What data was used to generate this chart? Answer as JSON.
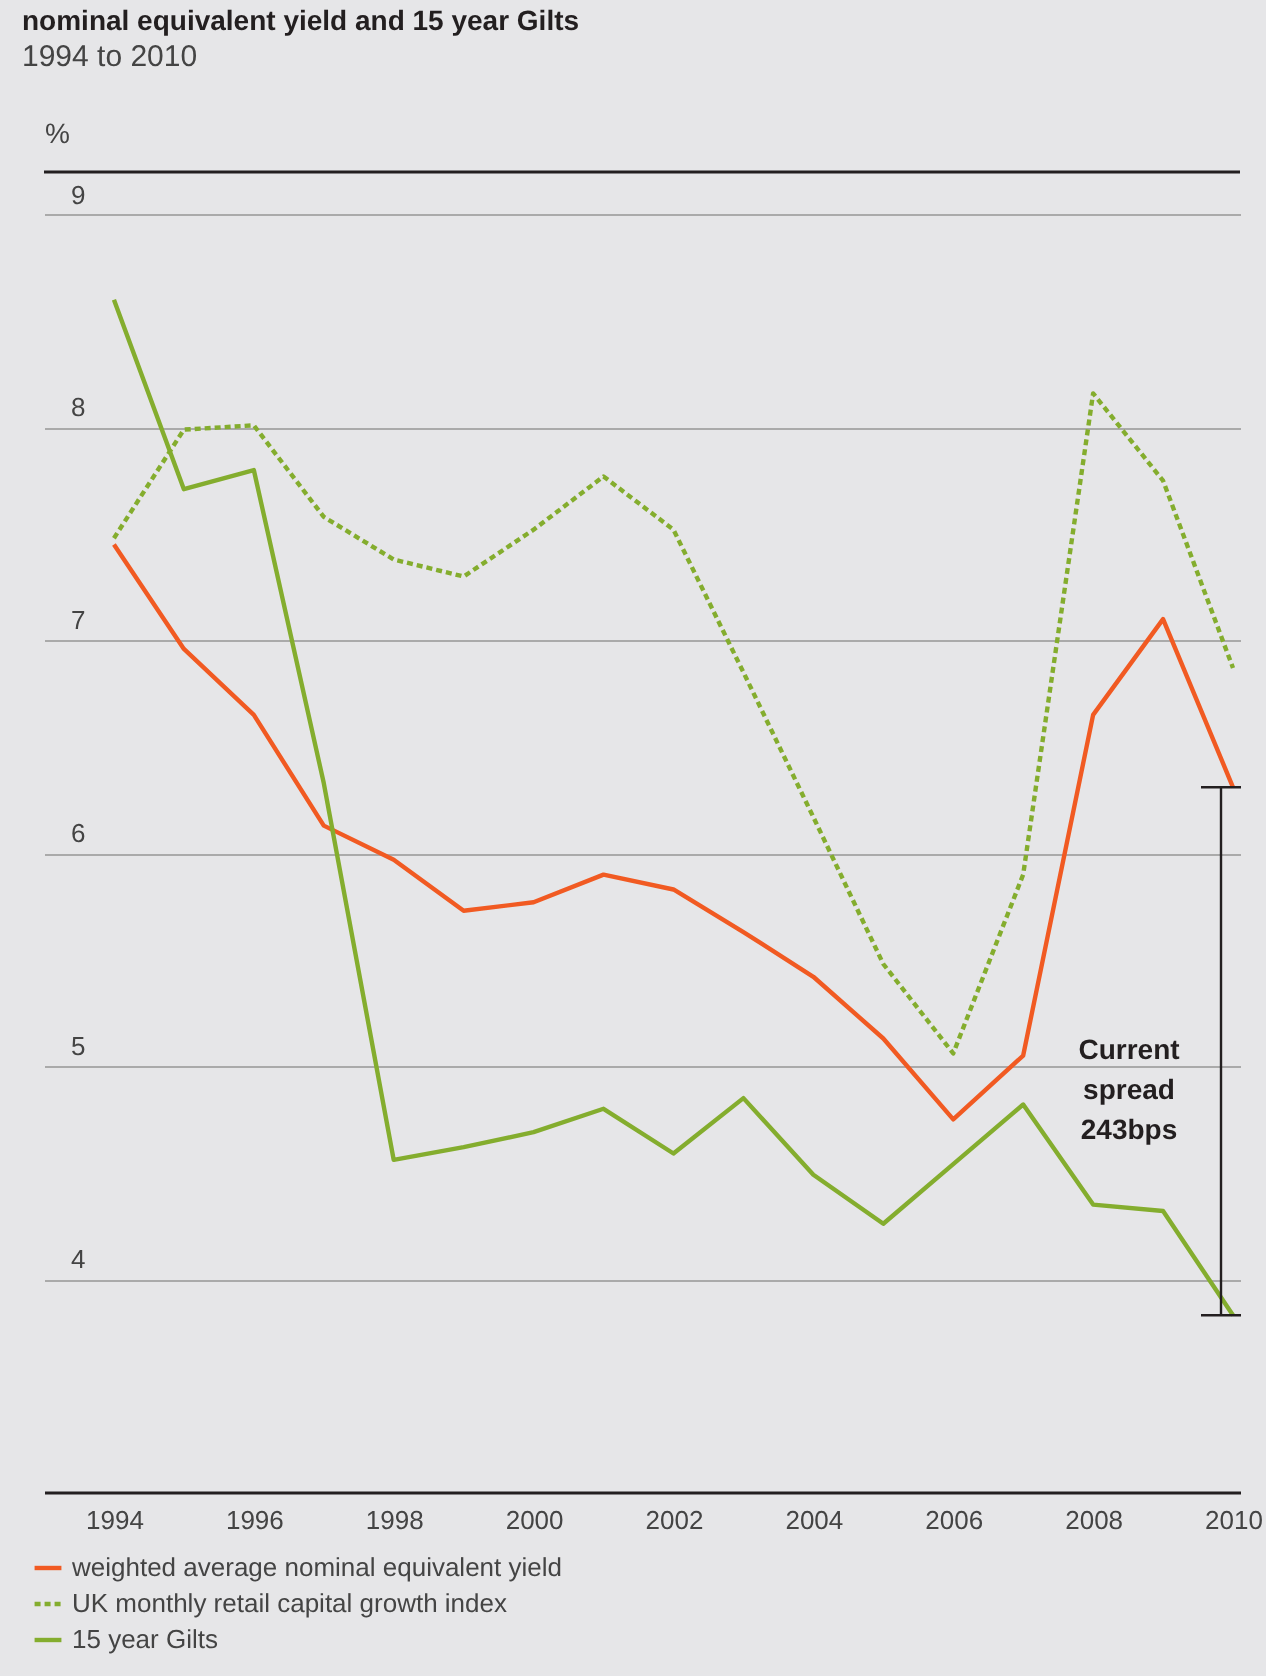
{
  "chart_data": {
    "type": "line",
    "title": "nominal equivalent yield and 15 year Gilts",
    "subtitle": "1994 to 2010",
    "ylabel": "%",
    "x": [
      1994,
      1995,
      1996,
      1997,
      1998,
      1999,
      2000,
      2001,
      2002,
      2003,
      2004,
      2005,
      2006,
      2007,
      2008,
      2009,
      2010
    ],
    "xlim": [
      1993,
      2010.1
    ],
    "xticks": [
      1994,
      1996,
      1998,
      2000,
      2002,
      2004,
      2006,
      2008,
      2010
    ],
    "ylim": [
      3,
      9.2
    ],
    "yticks": [
      4,
      5,
      6,
      7,
      8,
      9
    ],
    "grid": "y",
    "legend": "bottom left",
    "series": [
      {
        "name": "weighted average nominal equivalent yield",
        "color": "#f15a22",
        "line_style": "solid",
        "values": [
          7.45,
          6.96,
          6.65,
          6.13,
          5.97,
          5.73,
          5.77,
          5.9,
          5.83,
          5.63,
          5.42,
          5.13,
          4.75,
          5.05,
          6.65,
          7.1,
          6.31
        ]
      },
      {
        "name": "UK monthly retail capital growth index",
        "color": "#84ad2e",
        "line_style": "dotted",
        "values": [
          7.48,
          7.99,
          8.01,
          7.58,
          7.38,
          7.3,
          7.52,
          7.77,
          7.52,
          6.85,
          6.17,
          5.48,
          5.06,
          5.9,
          8.16,
          7.75,
          6.87
        ]
      },
      {
        "name": "15 year Gilts",
        "color": "#84ad2e",
        "line_style": "solid",
        "values": [
          8.6,
          7.71,
          7.8,
          6.33,
          4.56,
          4.62,
          4.69,
          4.8,
          4.59,
          4.85,
          4.49,
          4.26,
          4.54,
          4.82,
          4.35,
          4.32,
          3.83
        ]
      }
    ],
    "annotations": [
      "Current spread 243bps"
    ]
  }
}
